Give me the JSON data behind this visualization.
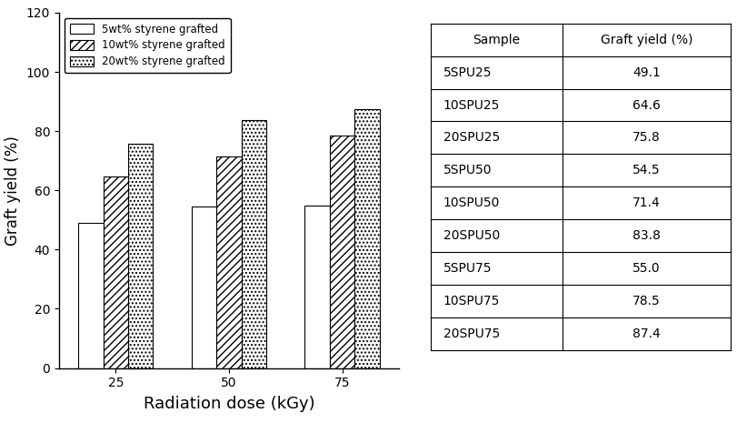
{
  "groups": [
    25,
    50,
    75
  ],
  "series": [
    {
      "label": "5wt% styrene grafted",
      "values": [
        49.1,
        54.5,
        55.0
      ],
      "hatch": "",
      "facecolor": "white",
      "edgecolor": "black"
    },
    {
      "label": "10wt% styrene grafted",
      "values": [
        64.6,
        71.4,
        78.5
      ],
      "hatch": "////",
      "facecolor": "white",
      "edgecolor": "black"
    },
    {
      "label": "20wt% styrene grafted",
      "values": [
        75.8,
        83.8,
        87.4
      ],
      "hatch": "....",
      "facecolor": "white",
      "edgecolor": "black"
    }
  ],
  "xlabel": "Radiation dose (kGy)",
  "ylabel": "Graft yield (%)",
  "ylim": [
    0,
    120
  ],
  "yticks": [
    0,
    20,
    40,
    60,
    80,
    100,
    120
  ],
  "bar_width": 0.22,
  "table_samples": [
    "5SPU25",
    "10SPU25",
    "20SPU25",
    "5SPU50",
    "10SPU50",
    "20SPU50",
    "5SPU75",
    "10SPU75",
    "20SPU75"
  ],
  "table_values": [
    "49.1",
    "64.6",
    "75.8",
    "54.5",
    "71.4",
    "83.8",
    "55.0",
    "78.5",
    "87.4"
  ],
  "table_header_col1": "Sample",
  "table_header_col2": "Graft yield (%)",
  "background_color": "white",
  "legend_fontsize": 8.5,
  "axis_label_fontsize": 12,
  "tick_fontsize": 10,
  "table_fontsize": 10,
  "xlabel_fontsize": 13
}
